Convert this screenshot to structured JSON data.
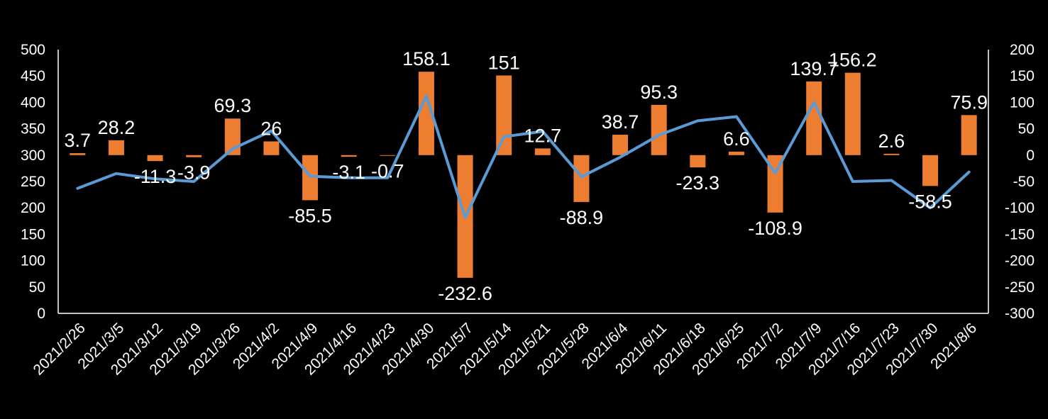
{
  "chart_data": {
    "type": "bar",
    "categories": [
      "2021/2/26",
      "2021/3/5",
      "2021/3/12",
      "2021/3/19",
      "2021/3/26",
      "2021/4/2",
      "2021/4/9",
      "2021/4/16",
      "2021/4/23",
      "2021/4/30",
      "2021/5/7",
      "2021/5/14",
      "2021/5/21",
      "2021/5/28",
      "2021/6/4",
      "2021/6/11",
      "2021/6/18",
      "2021/6/25",
      "2021/7/2",
      "2021/7/9",
      "2021/7/16",
      "2021/7/23",
      "2021/7/30",
      "2021/8/6"
    ],
    "series": [
      {
        "type": "bar",
        "axis": "right",
        "color": "#ED7D31",
        "values": [
          3.7,
          28.2,
          -11.3,
          -3.9,
          69.3,
          26,
          -85.5,
          -3.1,
          -0.7,
          158.1,
          -232.6,
          151,
          12.7,
          -88.9,
          38.7,
          95.3,
          -23.3,
          6.6,
          -108.9,
          139.7,
          156.2,
          2.6,
          -58.5,
          75.9
        ],
        "labels": [
          "3.7",
          "28.2",
          "-11.3",
          "-3.9",
          "69.3",
          "26",
          "-85.5",
          "-3.1",
          "-0.7",
          "158.1",
          "-232.6",
          "151",
          "12.7",
          "-88.9",
          "38.7",
          "95.3",
          "-23.3",
          "6.6",
          "-108.9",
          "139.7",
          "156.2",
          "2.6",
          "-58.5",
          "75.9"
        ]
      },
      {
        "type": "line",
        "axis": "left",
        "color": "#5B9BD5",
        "values": [
          237,
          265,
          255,
          250,
          312,
          346,
          260,
          257,
          257,
          412,
          182,
          335,
          345,
          259,
          296,
          338,
          365,
          373,
          266,
          400,
          250,
          252,
          200,
          268
        ]
      }
    ],
    "left_axis": {
      "ylim": [
        0,
        500
      ],
      "ticks": [
        "0",
        "50",
        "100",
        "150",
        "200",
        "250",
        "300",
        "350",
        "400",
        "450",
        "500"
      ]
    },
    "right_axis": {
      "ylim": [
        -300,
        200
      ],
      "ticks": [
        "-300",
        "-250",
        "-200",
        "-150",
        "-100",
        "-50",
        "0",
        "50",
        "100",
        "150",
        "200"
      ]
    },
    "grid": false,
    "legend": "none"
  }
}
